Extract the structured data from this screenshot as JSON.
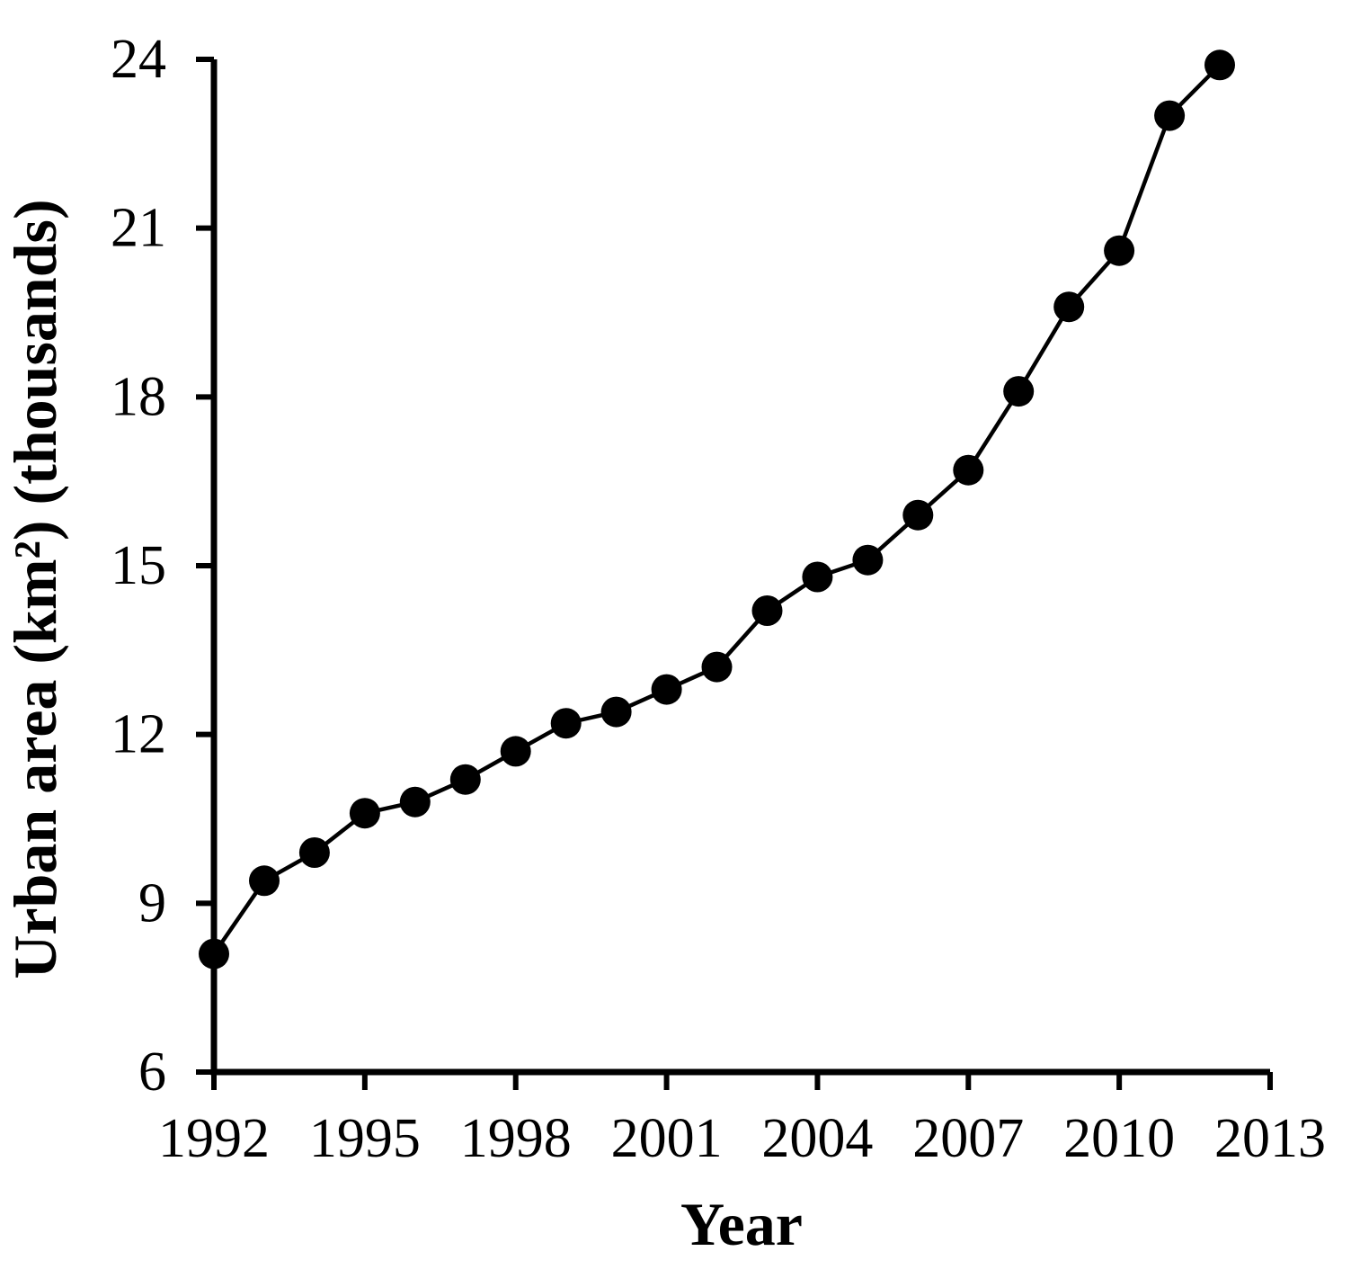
{
  "chart_data": {
    "type": "line",
    "title": "",
    "xlabel": "Year",
    "ylabel": "Urban area (km²) (thousands)",
    "x": [
      1992,
      1993,
      1994,
      1995,
      1996,
      1997,
      1998,
      1999,
      2000,
      2001,
      2002,
      2003,
      2004,
      2005,
      2006,
      2007,
      2008,
      2009,
      2010,
      2011,
      2012
    ],
    "series": [
      {
        "name": "Urban area (km², thousands)",
        "values": [
          8.1,
          9.4,
          9.9,
          10.6,
          10.8,
          11.2,
          11.7,
          12.2,
          12.4,
          12.8,
          13.2,
          14.2,
          14.8,
          15.1,
          15.9,
          16.7,
          18.1,
          19.6,
          20.6,
          23.0,
          23.9
        ]
      }
    ],
    "xlim": [
      1992,
      2013
    ],
    "ylim": [
      6,
      24
    ],
    "xticks": [
      1992,
      1995,
      1998,
      2001,
      2004,
      2007,
      2010,
      2013
    ],
    "yticks": [
      6,
      9,
      12,
      15,
      18,
      21,
      24
    ],
    "grid": false,
    "legend": "none",
    "marker": "filled-circle",
    "axis_color": "#000000",
    "line_color": "#000000",
    "marker_color": "#000000",
    "background": "#ffffff"
  }
}
